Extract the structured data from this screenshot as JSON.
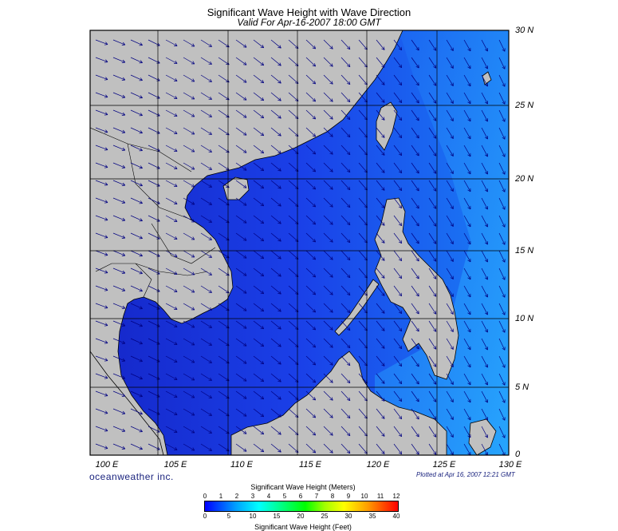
{
  "title": "Significant Wave Height with Wave Direction",
  "subtitle": "Valid For Apr-16-2007 18:00 GMT",
  "longitude_labels": [
    "100 E",
    "105 E",
    "110 E",
    "115 E",
    "120 E",
    "125 E",
    "130 E"
  ],
  "latitude_labels": [
    "30 N",
    "25 N",
    "20 N",
    "15 N",
    "10 N",
    "5 N",
    "0"
  ],
  "brand": "oceanweather inc.",
  "plotted_at": "Plotted at Apr 16, 2007 12:21 GMT",
  "legend": {
    "title_meters": "Significant Wave Height (Meters)",
    "title_feet": "Significant Wave Height (Feet)",
    "meters_ticks": [
      "0",
      "1",
      "2",
      "3",
      "4",
      "5",
      "6",
      "7",
      "8",
      "9",
      "10",
      "11",
      "12"
    ],
    "feet_ticks": [
      "0",
      "5",
      "10",
      "15",
      "20",
      "25",
      "30",
      "35",
      "40"
    ]
  },
  "colors": {
    "land": "#c0c0c0",
    "sea_low": "#1020d0",
    "sea_mid": "#1a5cf0",
    "sea_high": "#1aa0ff",
    "arrow": "#000080"
  }
}
